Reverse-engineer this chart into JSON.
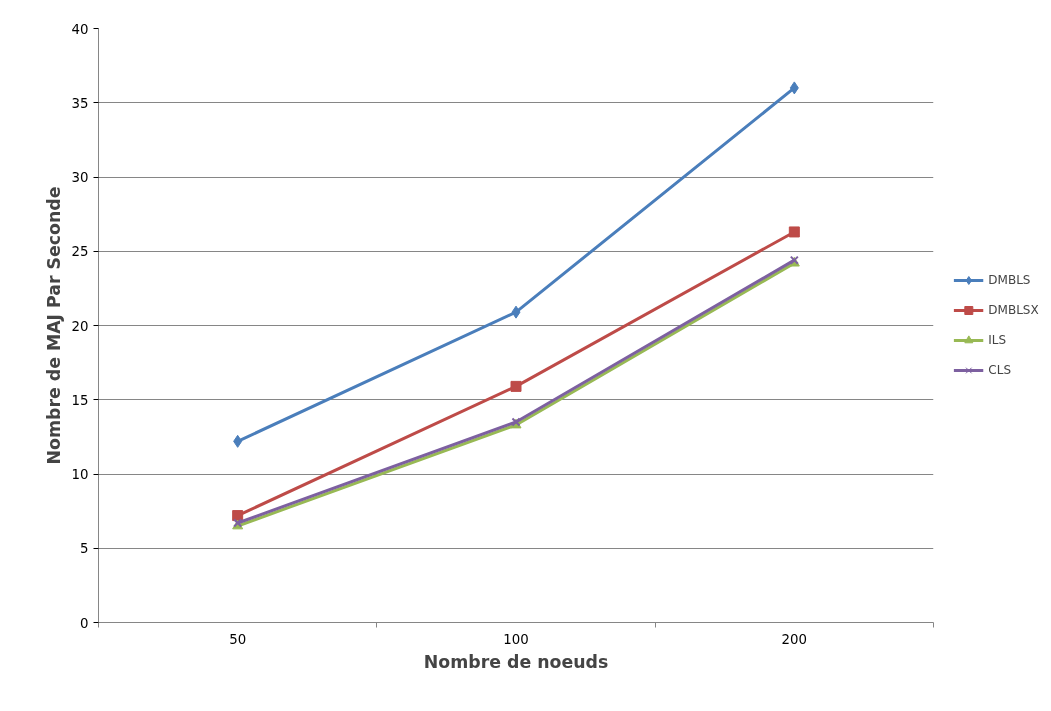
{
  "chart_data": {
    "type": "line",
    "xlabel": "Nombre de noeuds",
    "ylabel": "Nombre de MAJ Par Seconde",
    "categories": [
      "50",
      "100",
      "200"
    ],
    "series": [
      {
        "name": "DMBLS",
        "color": "#4a7ebb",
        "marker": "diamond",
        "values": [
          12.2,
          20.9,
          36.0
        ]
      },
      {
        "name": "DMBLSX",
        "color": "#be4b48",
        "marker": "square",
        "values": [
          7.2,
          15.9,
          26.3
        ]
      },
      {
        "name": "ILS",
        "color": "#98b954",
        "marker": "triangle",
        "values": [
          6.5,
          13.3,
          24.2
        ]
      },
      {
        "name": "CLS",
        "color": "#7d60a0",
        "marker": "cross",
        "values": [
          6.7,
          13.5,
          24.4
        ]
      }
    ],
    "ylim": [
      0,
      40
    ],
    "yticks": [
      0,
      5,
      10,
      15,
      20,
      25,
      30,
      35,
      40
    ],
    "grid": "y",
    "legend": "right"
  }
}
